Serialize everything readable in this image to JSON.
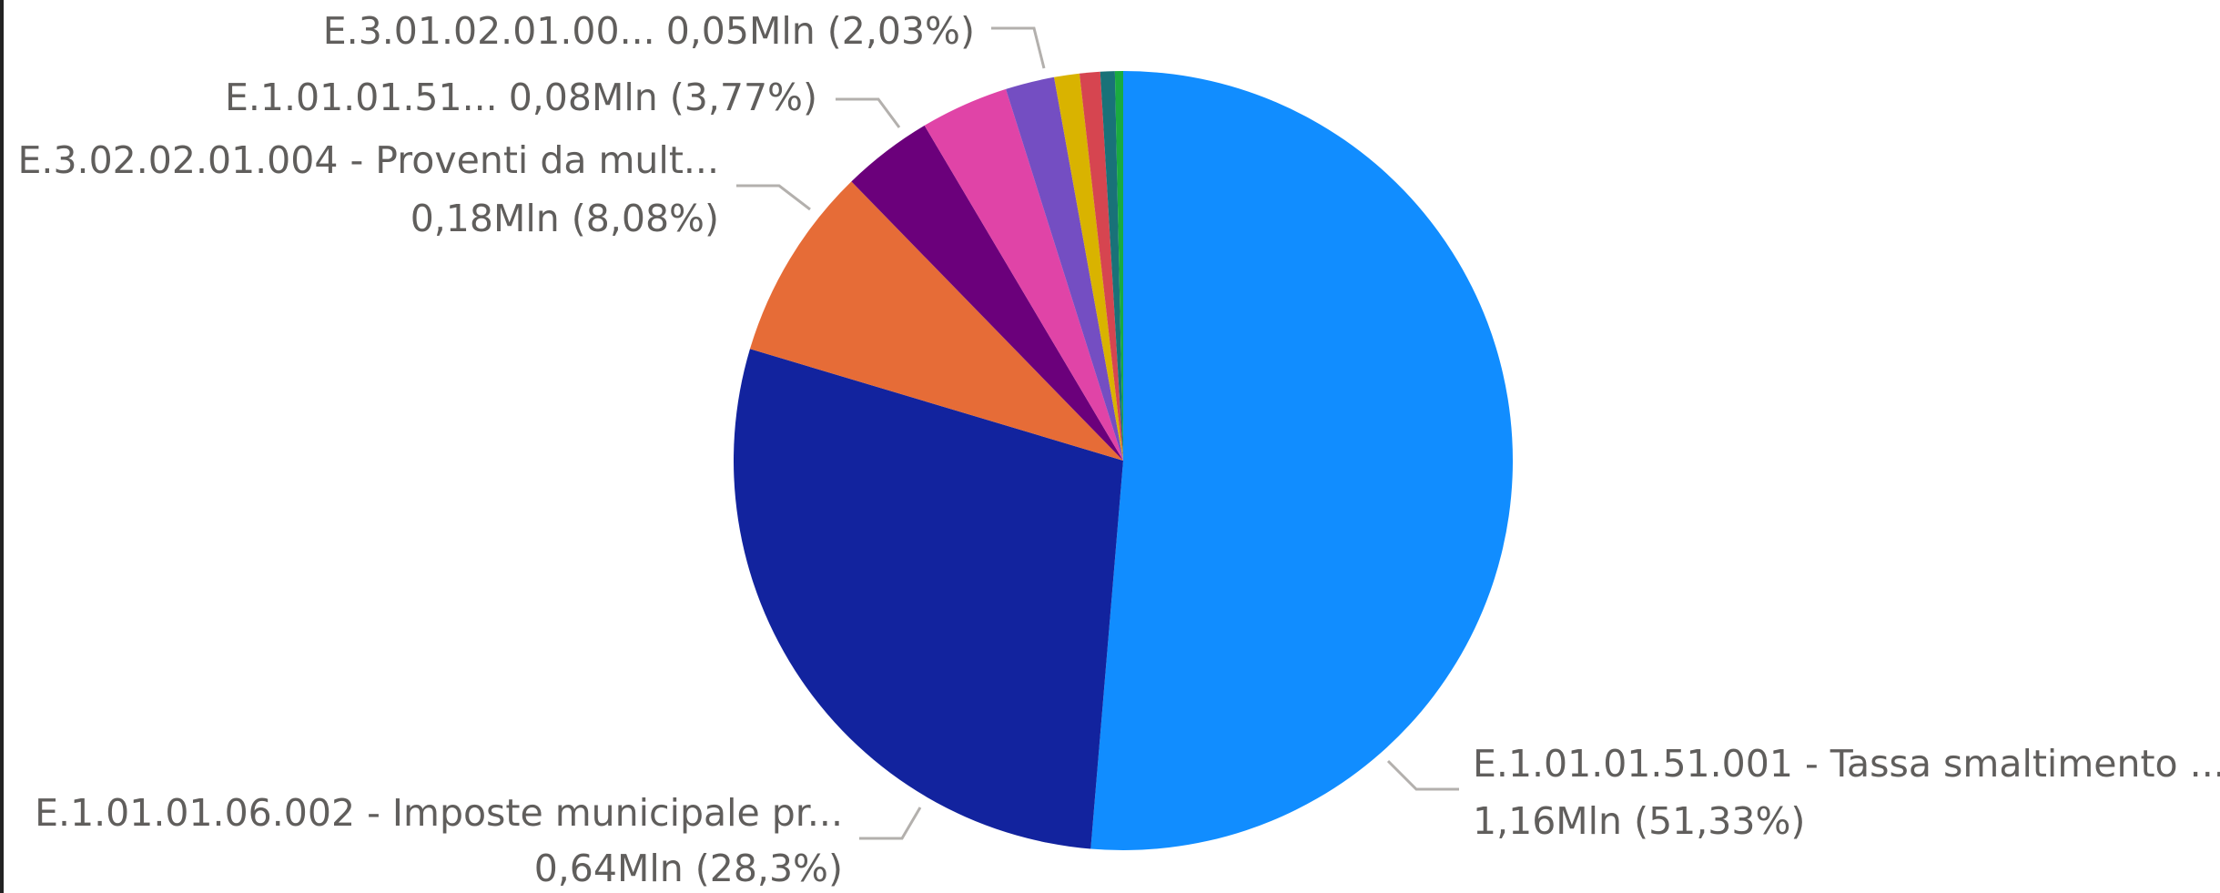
{
  "chart_data": {
    "type": "pie",
    "categories": [
      "E.1.01.01.51.001 - Tassa smaltimento ...",
      "E.1.01.01.06.002 - Imposte municipale pr...",
      "E.3.02.02.01.004 - Proventi da mult...",
      "E.1.01.01.51...",
      null,
      "E.3.01.02.01.00...",
      null,
      null,
      null,
      null
    ],
    "values": [
      51.33,
      28.3,
      8.08,
      3.77,
      3.65,
      2.03,
      1.05,
      0.85,
      0.6,
      0.34
    ],
    "value_labels": [
      "1,16Mln (51,33%)",
      "0,64Mln (28,3%)",
      "0,18Mln (8,08%)",
      "0,08Mln (3,77%)",
      null,
      "0,05Mln (2,03%)",
      null,
      null,
      null,
      null
    ],
    "colors": [
      "#118dff",
      "#12239e",
      "#e66c37",
      "#6b007b",
      "#e044a7",
      "#744ec2",
      "#d9b300",
      "#d64550",
      "#197278",
      "#1aab40"
    ]
  }
}
